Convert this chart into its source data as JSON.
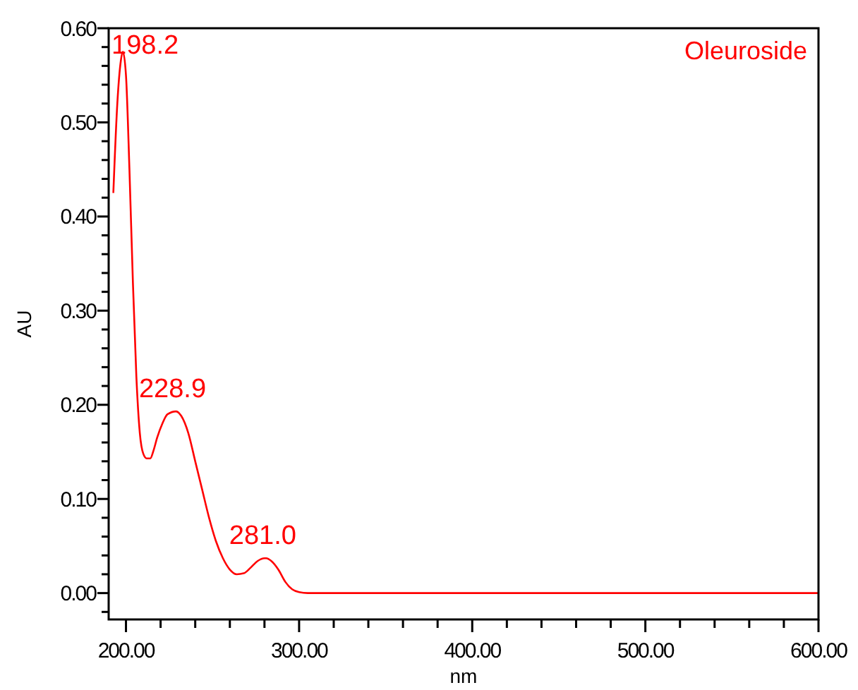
{
  "chart_data": {
    "type": "line",
    "xlabel": "nm",
    "ylabel": "AU",
    "legend": "top right",
    "xlim": [
      190,
      600
    ],
    "ylim": [
      -0.028,
      0.6
    ],
    "xticks": [
      {
        "value": 200,
        "label": "200.00"
      },
      {
        "value": 220,
        "label": null
      },
      {
        "value": 240,
        "label": null
      },
      {
        "value": 260,
        "label": null
      },
      {
        "value": 280,
        "label": null
      },
      {
        "value": 300,
        "label": "300.00"
      },
      {
        "value": 320,
        "label": null
      },
      {
        "value": 340,
        "label": null
      },
      {
        "value": 360,
        "label": null
      },
      {
        "value": 380,
        "label": null
      },
      {
        "value": 400,
        "label": "400.00"
      },
      {
        "value": 420,
        "label": null
      },
      {
        "value": 440,
        "label": null
      },
      {
        "value": 460,
        "label": null
      },
      {
        "value": 480,
        "label": null
      },
      {
        "value": 500,
        "label": "500.00"
      },
      {
        "value": 520,
        "label": null
      },
      {
        "value": 540,
        "label": null
      },
      {
        "value": 560,
        "label": null
      },
      {
        "value": 580,
        "label": null
      },
      {
        "value": 600,
        "label": "600.00"
      }
    ],
    "yticks": [
      {
        "value": -0.02,
        "label": null
      },
      {
        "value": 0,
        "label": "0.00"
      },
      {
        "value": 0.02,
        "label": null
      },
      {
        "value": 0.04,
        "label": null
      },
      {
        "value": 0.06,
        "label": null
      },
      {
        "value": 0.08,
        "label": null
      },
      {
        "value": 0.1,
        "label": "0.10"
      },
      {
        "value": 0.12,
        "label": null
      },
      {
        "value": 0.14,
        "label": null
      },
      {
        "value": 0.16,
        "label": null
      },
      {
        "value": 0.18,
        "label": null
      },
      {
        "value": 0.2,
        "label": "0.20"
      },
      {
        "value": 0.22,
        "label": null
      },
      {
        "value": 0.24,
        "label": null
      },
      {
        "value": 0.26,
        "label": null
      },
      {
        "value": 0.28,
        "label": null
      },
      {
        "value": 0.3,
        "label": "0.30"
      },
      {
        "value": 0.32,
        "label": null
      },
      {
        "value": 0.34,
        "label": null
      },
      {
        "value": 0.36,
        "label": null
      },
      {
        "value": 0.38,
        "label": null
      },
      {
        "value": 0.4,
        "label": "0.40"
      },
      {
        "value": 0.42,
        "label": null
      },
      {
        "value": 0.44,
        "label": null
      },
      {
        "value": 0.46,
        "label": null
      },
      {
        "value": 0.48,
        "label": null
      },
      {
        "value": 0.5,
        "label": "0.50"
      },
      {
        "value": 0.52,
        "label": null
      },
      {
        "value": 0.54,
        "label": null
      },
      {
        "value": 0.56,
        "label": null
      },
      {
        "value": 0.58,
        "label": null
      },
      {
        "value": 0.6,
        "label": "0.60"
      }
    ],
    "series": [
      {
        "name": "Oleuroside",
        "color": "#ff0000",
        "x": [
          192.7,
          195,
          197,
          198.2,
          200,
          202,
          204,
          206,
          208,
          210,
          212,
          214,
          216,
          218,
          221,
          224,
          228.9,
          232,
          236,
          240,
          244,
          248,
          252,
          256,
          260,
          264,
          268,
          272,
          276,
          280,
          281,
          284,
          288,
          292,
          296,
          300,
          305,
          600
        ],
        "values": [
          0.425,
          0.52,
          0.565,
          0.575,
          0.55,
          0.45,
          0.33,
          0.23,
          0.17,
          0.148,
          0.143,
          0.143,
          0.152,
          0.165,
          0.18,
          0.19,
          0.193,
          0.188,
          0.17,
          0.14,
          0.11,
          0.08,
          0.055,
          0.037,
          0.025,
          0.02,
          0.021,
          0.027,
          0.034,
          0.037,
          0.037,
          0.034,
          0.025,
          0.012,
          0.004,
          0.001,
          0,
          0
        ]
      }
    ],
    "annotations": [
      {
        "text": "198.2",
        "x": 198.2,
        "y": 0.575
      },
      {
        "text": "228.9",
        "x": 228.9,
        "y": 0.193
      },
      {
        "text": "281.0",
        "x": 281,
        "y": 0.037
      }
    ]
  }
}
